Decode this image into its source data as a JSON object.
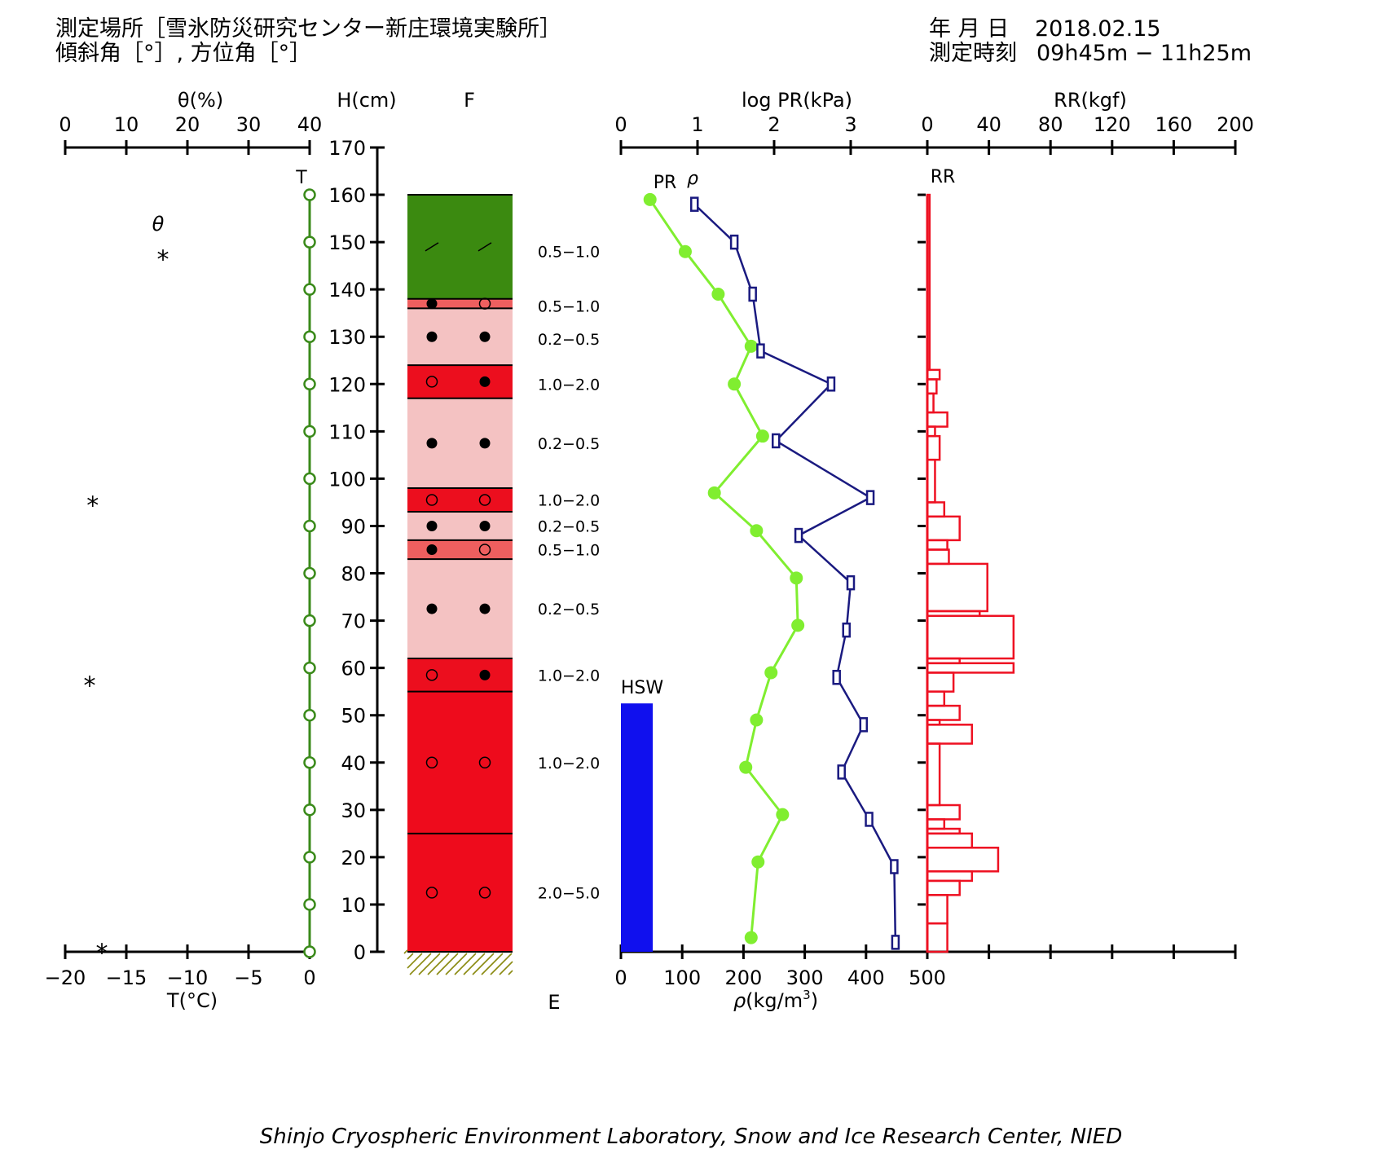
{
  "header": {
    "location_line": "測定場所［雪氷防災研究センター新庄環境実験所］",
    "angle_line": "傾斜角［°］, 方位角［°］",
    "date_label": "年 月 日",
    "date_value": "2018.02.15",
    "time_label": "測定時刻",
    "time_value": "09h45m − 11h25m"
  },
  "footer": "Shinjo Cryospheric Environment Laboratory, Snow and Ice Research Center, NIED",
  "colors": {
    "temperature": "#3a8a1a",
    "pr": "#80ee30",
    "density": "#1a1a80",
    "rr": "#ee1122",
    "hsw": "#1010ee",
    "layer_green": "#3b8a10",
    "layer_salmon": "#ee5f5f",
    "layer_pink": "#f4c2c2",
    "layer_red": "#ec0e1e",
    "layer_red2": "#ee0b1c"
  },
  "chart_data": [
    {
      "type": "line",
      "id": "temperature_theta",
      "top_axis": {
        "label": "θ(%)",
        "ticks": [
          "0",
          "10",
          "20",
          "30",
          "40"
        ],
        "range": [
          0,
          40
        ]
      },
      "bottom_axis": {
        "label": "T(°C)",
        "ticks": [
          "−20",
          "−15",
          "−10",
          "−5",
          "0"
        ],
        "range": [
          -20,
          0
        ]
      },
      "series": [
        {
          "name": "T",
          "x": [
            0,
            0,
            0,
            0,
            0,
            0,
            0,
            0,
            0,
            0,
            0,
            0,
            0,
            0,
            0,
            0,
            0
          ],
          "y": [
            160,
            150,
            140,
            130,
            120,
            110,
            100,
            90,
            80,
            70,
            60,
            50,
            40,
            30,
            20,
            10,
            0
          ]
        }
      ],
      "theta_label": "θ",
      "theta_marks": [
        {
          "theta": 16,
          "h": 148,
          "symbol": "*"
        },
        {
          "theta": 4.5,
          "h": 96,
          "symbol": "*"
        },
        {
          "theta": 4,
          "h": 58,
          "symbol": "*"
        },
        {
          "theta": 6,
          "h": 1.5,
          "symbol": "*"
        }
      ]
    },
    {
      "type": "table",
      "id": "stratigraphy",
      "h_axis": {
        "label": "H(cm)",
        "ticks": [
          "0",
          "10",
          "20",
          "30",
          "40",
          "50",
          "60",
          "70",
          "80",
          "90",
          "100",
          "110",
          "120",
          "130",
          "140",
          "150",
          "160",
          "170"
        ],
        "range": [
          0,
          170
        ]
      },
      "f_label": "F",
      "e_label": "E",
      "layers": [
        {
          "from": 138,
          "to": 160,
          "color": "layer_green",
          "s1": "slash",
          "s2": "slash",
          "grain": "0.5−1.0",
          "label_h": 148
        },
        {
          "from": 136,
          "to": 138,
          "color": "layer_salmon",
          "s1": "filled",
          "s2": "open",
          "grain": "0.5−1.0",
          "label_h": 136.5
        },
        {
          "from": 124,
          "to": 136,
          "color": "layer_pink",
          "s1": "filled",
          "s2": "filled",
          "grain": "0.2−0.5",
          "label_h": 129.5
        },
        {
          "from": 117,
          "to": 124,
          "color": "layer_red",
          "s1": "open",
          "s2": "filled",
          "grain": "1.0−2.0",
          "label_h": 120
        },
        {
          "from": 98,
          "to": 117,
          "color": "layer_pink",
          "s1": "filled",
          "s2": "filled",
          "grain": "0.2−0.5",
          "label_h": 107.5
        },
        {
          "from": 93,
          "to": 98,
          "color": "layer_red",
          "s1": "open",
          "s2": "open",
          "grain": "1.0−2.0",
          "label_h": 95.5
        },
        {
          "from": 87,
          "to": 93,
          "color": "layer_pink",
          "s1": "filled",
          "s2": "filled",
          "grain": "0.2−0.5",
          "label_h": 90
        },
        {
          "from": 83,
          "to": 87,
          "color": "layer_salmon",
          "s1": "filled",
          "s2": "open",
          "grain": "0.5−1.0",
          "label_h": 85
        },
        {
          "from": 62,
          "to": 83,
          "color": "layer_pink",
          "s1": "filled",
          "s2": "filled",
          "grain": "0.2−0.5",
          "label_h": 72.5
        },
        {
          "from": 55,
          "to": 62,
          "color": "layer_red",
          "s1": "open",
          "s2": "filled",
          "grain": "1.0−2.0",
          "label_h": 58.5
        },
        {
          "from": 25,
          "to": 55,
          "color": "layer_red2",
          "s1": "open",
          "s2": "open",
          "grain": "1.0−2.0",
          "label_h": 40
        },
        {
          "from": 0,
          "to": 25,
          "color": "layer_red2",
          "s1": "open",
          "s2": "open",
          "grain": "2.0−5.0",
          "label_h": 12.5
        }
      ]
    },
    {
      "type": "line",
      "id": "pr_density",
      "top_axis": {
        "label": "log PR(kPa)",
        "ticks": [
          "0",
          "1",
          "2",
          "3"
        ],
        "range": [
          0,
          4
        ]
      },
      "bottom_axis": {
        "label_prefix": "ρ",
        "label": "(kg/m",
        "label_sup": "3",
        "label_suffix": ")",
        "ticks": [
          "0",
          "100",
          "200",
          "300",
          "400",
          "500"
        ],
        "range": [
          0,
          500
        ]
      },
      "series": [
        {
          "name": "PR",
          "x": [
            0.38,
            0.84,
            1.27,
            1.7,
            1.48,
            1.85,
            1.22,
            1.77,
            2.29,
            2.31,
            1.96,
            1.77,
            1.63,
            2.11,
            1.79,
            1.7
          ],
          "y": [
            159,
            148,
            139,
            128,
            120,
            109,
            97,
            89,
            79,
            69,
            59,
            49,
            39,
            29,
            19,
            3
          ]
        },
        {
          "name": "ρ",
          "x": [
            120,
            185,
            215,
            228,
            343,
            253,
            407,
            290,
            375,
            368,
            352,
            396,
            360,
            405,
            446,
            448
          ],
          "y": [
            158,
            150,
            139,
            127,
            120,
            108,
            96,
            88,
            78,
            68,
            58,
            48,
            38,
            28,
            18,
            2
          ]
        }
      ],
      "hsw": {
        "label": "HSW",
        "value": 52.5,
        "width": 52
      }
    },
    {
      "type": "bar",
      "id": "ram_resistance",
      "top_axis": {
        "label": "RR(kgf)",
        "ticks": [
          "0",
          "40",
          "80",
          "120",
          "160",
          "200"
        ],
        "range": [
          0,
          200
        ]
      },
      "series_label": "RR",
      "steps": [
        {
          "from": 123,
          "to": 160,
          "value": 1.5
        },
        {
          "from": 121,
          "to": 123,
          "value": 8
        },
        {
          "from": 118,
          "to": 121,
          "value": 6
        },
        {
          "from": 114,
          "to": 118,
          "value": 4
        },
        {
          "from": 111,
          "to": 114,
          "value": 13
        },
        {
          "from": 109,
          "to": 111,
          "value": 5
        },
        {
          "from": 104,
          "to": 109,
          "value": 8
        },
        {
          "from": 95,
          "to": 104,
          "value": 5
        },
        {
          "from": 92,
          "to": 95,
          "value": 11
        },
        {
          "from": 87,
          "to": 92,
          "value": 21
        },
        {
          "from": 85,
          "to": 87,
          "value": 13
        },
        {
          "from": 82,
          "to": 85,
          "value": 14
        },
        {
          "from": 72,
          "to": 82,
          "value": 39
        },
        {
          "from": 71,
          "to": 72,
          "value": 34
        },
        {
          "from": 62,
          "to": 71,
          "value": 56
        },
        {
          "from": 61,
          "to": 62,
          "value": 21
        },
        {
          "from": 59,
          "to": 61,
          "value": 56
        },
        {
          "from": 55,
          "to": 59,
          "value": 17
        },
        {
          "from": 52,
          "to": 55,
          "value": 11
        },
        {
          "from": 49,
          "to": 52,
          "value": 21
        },
        {
          "from": 48,
          "to": 49,
          "value": 8
        },
        {
          "from": 44,
          "to": 48,
          "value": 29
        },
        {
          "from": 31,
          "to": 44,
          "value": 8
        },
        {
          "from": 28,
          "to": 31,
          "value": 21
        },
        {
          "from": 26,
          "to": 28,
          "value": 11
        },
        {
          "from": 25,
          "to": 26,
          "value": 21
        },
        {
          "from": 22,
          "to": 25,
          "value": 29
        },
        {
          "from": 17,
          "to": 22,
          "value": 46
        },
        {
          "from": 15,
          "to": 17,
          "value": 29
        },
        {
          "from": 12,
          "to": 15,
          "value": 21
        },
        {
          "from": 6,
          "to": 12,
          "value": 13
        },
        {
          "from": 0,
          "to": 6,
          "value": 13
        }
      ]
    }
  ]
}
